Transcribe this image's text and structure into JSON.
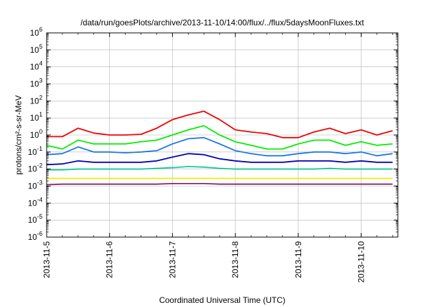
{
  "chart_data": {
    "type": "line",
    "title": "/data/run/goesPlots/archive/2013-11-10/14:00/flux/../flux/5daysMoonFluxes.txt",
    "xlabel": "Coordinated Universal Time (UTC)",
    "ylabel": "protons/cm²-s-sr-MeV",
    "y_scale": "log",
    "ylim_exponents": [
      -6,
      6
    ],
    "xlim": [
      "2013-11-05T00:00",
      "2013-11-10T14:00"
    ],
    "x_tick_labels": [
      "2013-11-5",
      "2013-11-6",
      "2013-11-7",
      "2013-11-8",
      "2013-11-9",
      "2013-11-10"
    ],
    "y_tick_labels": [
      {
        "base": "10",
        "exp": "-6"
      },
      {
        "base": "10",
        "exp": "-5"
      },
      {
        "base": "10",
        "exp": "-4"
      },
      {
        "base": "10",
        "exp": "-3"
      },
      {
        "base": "10",
        "exp": "-2"
      },
      {
        "base": "10",
        "exp": "-1"
      },
      {
        "base": "10",
        "exp": "0"
      },
      {
        "base": "10",
        "exp": "1"
      },
      {
        "base": "10",
        "exp": "2"
      },
      {
        "base": "10",
        "exp": "3"
      },
      {
        "base": "10",
        "exp": "4"
      },
      {
        "base": "10",
        "exp": "5"
      },
      {
        "base": "10",
        "exp": "6"
      }
    ],
    "grid": true,
    "legend": "none",
    "x": [
      "2013-11-05T00:00",
      "2013-11-05T06:00",
      "2013-11-05T12:00",
      "2013-11-05T18:00",
      "2013-11-06T00:00",
      "2013-11-06T06:00",
      "2013-11-06T12:00",
      "2013-11-06T18:00",
      "2013-11-07T00:00",
      "2013-11-07T06:00",
      "2013-11-07T12:00",
      "2013-11-07T18:00",
      "2013-11-08T00:00",
      "2013-11-08T06:00",
      "2013-11-08T12:00",
      "2013-11-08T18:00",
      "2013-11-09T00:00",
      "2013-11-09T06:00",
      "2013-11-09T12:00",
      "2013-11-09T18:00",
      "2013-11-10T00:00",
      "2013-11-10T06:00",
      "2013-11-10T12:00"
    ],
    "series": [
      {
        "color": "#ee0000",
        "values": [
          0.8,
          0.8,
          2.5,
          1.3,
          1.0,
          1.0,
          1.1,
          2.5,
          8,
          15,
          25,
          8,
          2.0,
          1.5,
          1.2,
          0.7,
          0.7,
          1.5,
          2.5,
          1.2,
          2.0,
          1.0,
          1.8
        ]
      },
      {
        "color": "#00ee00",
        "values": [
          0.25,
          0.15,
          0.5,
          0.3,
          0.3,
          0.3,
          0.4,
          0.5,
          1.0,
          2.0,
          3.5,
          1.0,
          0.4,
          0.25,
          0.15,
          0.15,
          0.3,
          0.5,
          0.5,
          0.25,
          0.4,
          0.25,
          0.3
        ]
      },
      {
        "color": "#1a78e6",
        "values": [
          0.07,
          0.08,
          0.2,
          0.1,
          0.1,
          0.09,
          0.1,
          0.12,
          0.3,
          0.6,
          0.7,
          0.3,
          0.12,
          0.08,
          0.06,
          0.06,
          0.08,
          0.1,
          0.1,
          0.08,
          0.1,
          0.06,
          0.08
        ]
      },
      {
        "color": "#0000bb",
        "values": [
          0.018,
          0.02,
          0.03,
          0.025,
          0.025,
          0.025,
          0.025,
          0.03,
          0.05,
          0.08,
          0.07,
          0.04,
          0.03,
          0.025,
          0.025,
          0.025,
          0.03,
          0.03,
          0.03,
          0.025,
          0.03,
          0.025,
          0.025
        ]
      },
      {
        "color": "#11cc99",
        "values": [
          0.009,
          0.009,
          0.01,
          0.01,
          0.01,
          0.01,
          0.01,
          0.011,
          0.012,
          0.014,
          0.013,
          0.011,
          0.01,
          0.01,
          0.01,
          0.01,
          0.01,
          0.01,
          0.011,
          0.01,
          0.01,
          0.01,
          0.01
        ]
      },
      {
        "color": "#eeee00",
        "values": [
          0.0028,
          0.0028,
          0.0028,
          0.0028,
          0.0028,
          0.0028,
          0.0028,
          0.0028,
          0.0028,
          0.0028,
          0.0028,
          0.0028,
          0.0028,
          0.0028,
          0.0028,
          0.0028,
          0.0028,
          0.0028,
          0.0028,
          0.0028,
          0.0028,
          0.0028,
          0.0028
        ]
      },
      {
        "color": "#882266",
        "values": [
          0.0012,
          0.0013,
          0.0013,
          0.0013,
          0.0013,
          0.0013,
          0.0013,
          0.0013,
          0.0014,
          0.0014,
          0.0014,
          0.0013,
          0.0013,
          0.0013,
          0.0013,
          0.0013,
          0.0013,
          0.0013,
          0.0013,
          0.0013,
          0.0013,
          0.0013,
          0.0013
        ]
      }
    ]
  }
}
